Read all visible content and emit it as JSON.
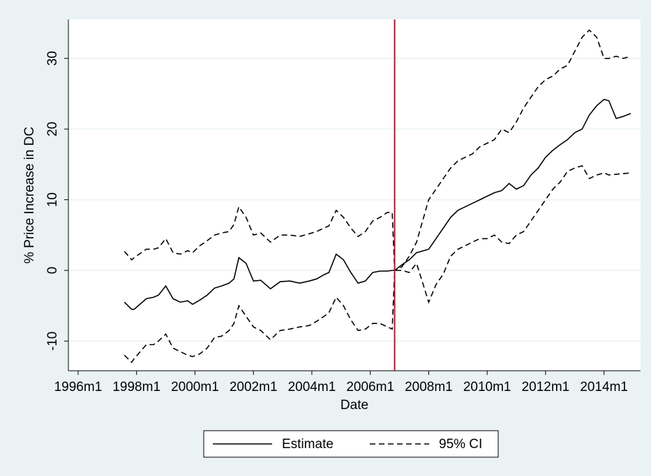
{
  "chart_data": {
    "type": "line",
    "y_label": "% Price Increase in DC",
    "x_label": "Date",
    "x": [
      "1997m8",
      "1997m11",
      "1997m12",
      "1998m5",
      "1998m8",
      "1998m10",
      "1999m1",
      "1999m4",
      "1999m7",
      "1999m10",
      "1999m12",
      "2000m3",
      "2000m6",
      "2000m9",
      "2000m12",
      "2001m3",
      "2001m5",
      "2001m7",
      "2001m10",
      "2002m1",
      "2002m4",
      "2002m8",
      "2002m12",
      "2003m4",
      "2003m8",
      "2003m12",
      "2004m3",
      "2004m6",
      "2004m8",
      "2004m11",
      "2005m2",
      "2005m5",
      "2005m8",
      "2005m11",
      "2006m2",
      "2006m5",
      "2006m8",
      "2006m10",
      "2006m11",
      "2007m2",
      "2007m5",
      "2007m8",
      "2008m1",
      "2008m4",
      "2008m7",
      "2008m10",
      "2009m1",
      "2009m4",
      "2009m7",
      "2009m10",
      "2010m1",
      "2010m4",
      "2010m7",
      "2010m10",
      "2011m1",
      "2011m4",
      "2011m7",
      "2011m10",
      "2012m1",
      "2012m4",
      "2012m7",
      "2012m10",
      "2013m1",
      "2013m4",
      "2013m7",
      "2013m10",
      "2014m1",
      "2014m3",
      "2014m6",
      "2014m9",
      "2014m12"
    ],
    "series": [
      {
        "name": "Estimate",
        "color": "#000000",
        "dashed": false,
        "values": [
          -4.5,
          -5.5,
          -5.5,
          -4,
          -3.8,
          -3.5,
          -2.2,
          -4,
          -4.5,
          -4.3,
          -4.8,
          -4.2,
          -3.5,
          -2.5,
          -2.2,
          -1.8,
          -1.2,
          1.8,
          1,
          -1.5,
          -1.4,
          -2.6,
          -1.6,
          -1.5,
          -1.8,
          -1.5,
          -1.2,
          -0.6,
          -0.3,
          2.3,
          1.5,
          -0.3,
          -1.8,
          -1.5,
          -0.3,
          -0.1,
          -0.1,
          0,
          0,
          0.8,
          1.5,
          2.5,
          3,
          4.5,
          6,
          7.5,
          8.5,
          9,
          9.5,
          10,
          10.5,
          11,
          11.3,
          12.3,
          11.5,
          12,
          13.5,
          14.5,
          16,
          17,
          17.8,
          18.5,
          19.5,
          20,
          22,
          23.3,
          24.2,
          24,
          21.5,
          21.8,
          22.2
        ]
      },
      {
        "name": "95% CI",
        "color": "#000000",
        "dashed": true,
        "values": [
          2.7,
          1.5,
          1.8,
          3,
          3,
          3.2,
          4.5,
          2.5,
          2.3,
          2.8,
          2.5,
          3.5,
          4.2,
          5,
          5.3,
          5.5,
          6.5,
          9,
          7.5,
          5,
          5.3,
          4,
          5,
          5,
          4.8,
          5.2,
          5.5,
          6,
          6.3,
          8.5,
          7.5,
          6,
          4.8,
          5.5,
          7,
          7.5,
          8.2,
          8.2,
          0,
          0.5,
          2,
          4,
          10,
          11.5,
          13,
          14.5,
          15.5,
          16,
          16.5,
          17.5,
          18,
          18.5,
          20,
          19.5,
          21,
          23,
          24.5,
          26,
          27,
          27.5,
          28.5,
          29,
          31,
          33,
          34,
          33,
          30,
          30,
          30.3,
          30,
          30.3
        ]
      },
      {
        "name": null,
        "color": "#000000",
        "dashed": true,
        "values": [
          -12,
          -13,
          -12.5,
          -10.5,
          -10.5,
          -10,
          -9,
          -11,
          -11.5,
          -12,
          -12.2,
          -11.8,
          -11,
          -9.5,
          -9.3,
          -8.5,
          -7.5,
          -5,
          -6.5,
          -8,
          -8.5,
          -9.8,
          -8.5,
          -8.3,
          -8,
          -7.8,
          -7.2,
          -6.5,
          -6,
          -3.8,
          -5,
          -7,
          -8.5,
          -8.3,
          -7.5,
          -7.5,
          -8,
          -8.3,
          0,
          0,
          -0.3,
          1,
          -4.5,
          -2,
          -0.5,
          2,
          3,
          3.5,
          4,
          4.5,
          4.5,
          5,
          4,
          3.8,
          5,
          5.5,
          7,
          8.5,
          10,
          11.5,
          12.5,
          14,
          14.5,
          14.8,
          13,
          13.5,
          13.8,
          13.5,
          13.6,
          13.7,
          13.8
        ]
      }
    ],
    "xlim": [
      "1995m9",
      "2015m4"
    ],
    "xticks": [
      "1996m1",
      "1998m1",
      "2000m1",
      "2002m1",
      "2004m1",
      "2006m1",
      "2008m1",
      "2010m1",
      "2012m1",
      "2014m1"
    ],
    "ylim": [
      -14.2,
      35.5
    ],
    "yticks": [
      -10,
      0,
      10,
      20,
      30
    ],
    "xline": "2006m11",
    "xline_color": "#c0102a",
    "grid": true
  }
}
